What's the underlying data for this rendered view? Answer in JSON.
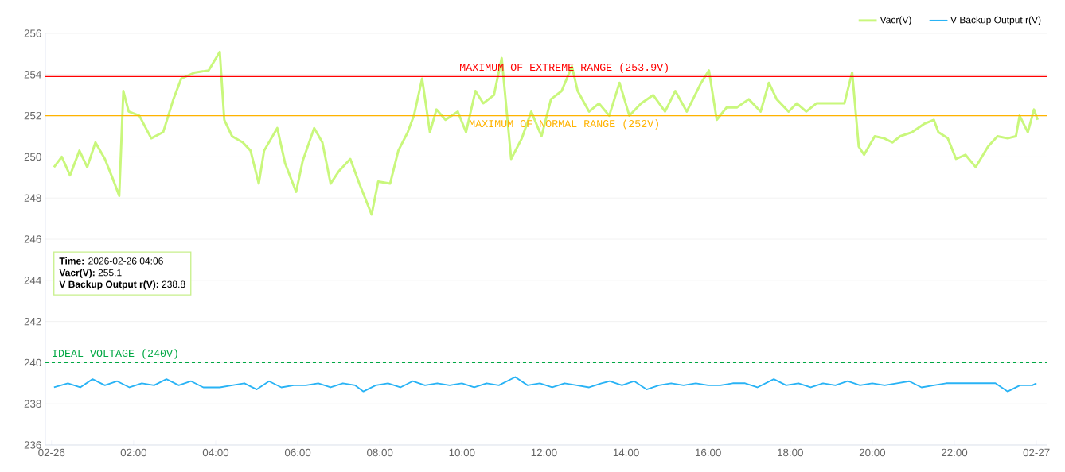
{
  "chart_data": {
    "type": "line",
    "xlim": [
      -0.15,
      24.25
    ],
    "ylim": [
      236,
      256
    ],
    "xticks": [
      {
        "value": 0,
        "label": "02-26"
      },
      {
        "value": 2,
        "label": "02:00"
      },
      {
        "value": 4,
        "label": "04:00"
      },
      {
        "value": 6,
        "label": "06:00"
      },
      {
        "value": 8,
        "label": "08:00"
      },
      {
        "value": 10,
        "label": "10:00"
      },
      {
        "value": 12,
        "label": "12:00"
      },
      {
        "value": 14,
        "label": "14:00"
      },
      {
        "value": 16,
        "label": "16:00"
      },
      {
        "value": 18,
        "label": "18:00"
      },
      {
        "value": 20,
        "label": "20:00"
      },
      {
        "value": 22,
        "label": "22:00"
      },
      {
        "value": 24,
        "label": "02-27"
      }
    ],
    "yticks": [
      236,
      238,
      240,
      242,
      244,
      246,
      248,
      250,
      252,
      254,
      256
    ],
    "grid": "y",
    "legend": "top right",
    "marker": "none",
    "line_style": "solid",
    "series": [
      {
        "name": "Vacr(V)",
        "color": "#c9f77c",
        "x": [
          0.06,
          0.25,
          0.45,
          0.68,
          0.87,
          1.07,
          1.3,
          1.5,
          1.65,
          1.75,
          1.88,
          2.14,
          2.43,
          2.72,
          2.97,
          3.16,
          3.5,
          3.83,
          4.1,
          4.21,
          4.4,
          4.66,
          4.85,
          5.05,
          5.18,
          5.5,
          5.69,
          5.96,
          6.12,
          6.4,
          6.6,
          6.8,
          7.0,
          7.28,
          7.5,
          7.8,
          7.96,
          8.25,
          8.45,
          8.68,
          8.83,
          9.03,
          9.22,
          9.38,
          9.6,
          9.9,
          10.1,
          10.33,
          10.52,
          10.78,
          10.97,
          11.2,
          11.46,
          11.69,
          11.94,
          12.17,
          12.43,
          12.68,
          12.82,
          13.1,
          13.34,
          13.59,
          13.84,
          14.08,
          14.37,
          14.66,
          14.95,
          15.2,
          15.48,
          15.83,
          16.02,
          16.21,
          16.45,
          16.7,
          16.99,
          17.28,
          17.48,
          17.67,
          17.96,
          18.16,
          18.39,
          18.64,
          18.93,
          19.32,
          19.51,
          19.67,
          19.8,
          20.06,
          20.29,
          20.49,
          20.68,
          20.97,
          21.26,
          21.5,
          21.61,
          21.84,
          22.04,
          22.27,
          22.52,
          22.82,
          23.05,
          23.3,
          23.5,
          23.59,
          23.79,
          23.94,
          24.03
        ],
        "values": [
          249.5,
          250.0,
          249.1,
          250.3,
          249.5,
          250.7,
          249.9,
          248.9,
          248.1,
          253.2,
          252.2,
          252.0,
          250.9,
          251.2,
          252.8,
          253.8,
          254.1,
          254.2,
          255.1,
          251.8,
          251.0,
          250.7,
          250.3,
          248.7,
          250.3,
          251.4,
          249.7,
          248.3,
          249.8,
          251.4,
          250.7,
          248.7,
          249.3,
          249.9,
          248.7,
          247.2,
          248.8,
          248.7,
          250.3,
          251.2,
          252.0,
          253.8,
          251.2,
          252.3,
          251.8,
          252.2,
          251.2,
          253.2,
          252.6,
          253.0,
          254.8,
          249.9,
          250.9,
          252.2,
          251.0,
          252.8,
          253.2,
          254.4,
          253.2,
          252.2,
          252.6,
          252.0,
          253.6,
          252.0,
          252.6,
          253.0,
          252.2,
          253.2,
          252.2,
          253.6,
          254.2,
          251.8,
          252.4,
          252.4,
          252.8,
          252.2,
          253.6,
          252.8,
          252.2,
          252.6,
          252.2,
          252.6,
          252.6,
          252.6,
          254.1,
          250.5,
          250.1,
          251.0,
          250.9,
          250.7,
          251.0,
          251.2,
          251.6,
          251.8,
          251.2,
          250.9,
          249.9,
          250.1,
          249.5,
          250.5,
          251.0,
          250.9,
          251.0,
          252.0,
          251.2,
          252.3,
          251.8
        ]
      },
      {
        "name": "V Backup Output r(V)",
        "color": "#29b3f5",
        "x": [
          0.06,
          0.4,
          0.7,
          1.0,
          1.3,
          1.6,
          1.9,
          2.2,
          2.5,
          2.8,
          3.1,
          3.4,
          3.7,
          4.1,
          4.4,
          4.7,
          5.0,
          5.3,
          5.6,
          5.9,
          6.2,
          6.5,
          6.8,
          7.1,
          7.4,
          7.6,
          7.9,
          8.2,
          8.5,
          8.8,
          9.1,
          9.4,
          9.7,
          10.0,
          10.3,
          10.6,
          10.9,
          11.3,
          11.6,
          11.9,
          12.2,
          12.5,
          12.8,
          13.1,
          13.4,
          13.6,
          13.9,
          14.2,
          14.5,
          14.8,
          15.1,
          15.4,
          15.7,
          16.0,
          16.3,
          16.6,
          16.9,
          17.2,
          17.6,
          17.9,
          18.2,
          18.5,
          18.8,
          19.1,
          19.4,
          19.7,
          20.0,
          20.3,
          20.6,
          20.9,
          21.2,
          21.5,
          21.8,
          22.1,
          22.4,
          22.7,
          23.0,
          23.3,
          23.6,
          23.9,
          24.0
        ],
        "values": [
          238.8,
          239.0,
          238.8,
          239.2,
          238.9,
          239.1,
          238.8,
          239.0,
          238.9,
          239.2,
          238.9,
          239.1,
          238.8,
          238.8,
          238.9,
          239.0,
          238.7,
          239.1,
          238.8,
          238.9,
          238.9,
          239.0,
          238.8,
          239.0,
          238.9,
          238.6,
          238.9,
          239.0,
          238.8,
          239.1,
          238.9,
          239.0,
          238.9,
          239.0,
          238.8,
          239.0,
          238.9,
          239.3,
          238.9,
          239.0,
          238.8,
          239.0,
          238.9,
          238.8,
          239.0,
          239.1,
          238.9,
          239.1,
          238.7,
          238.9,
          239.0,
          238.9,
          239.0,
          238.9,
          238.9,
          239.0,
          239.0,
          238.8,
          239.2,
          238.9,
          239.0,
          238.8,
          239.0,
          238.9,
          239.1,
          238.9,
          239.0,
          238.9,
          239.0,
          239.1,
          238.8,
          238.9,
          239.0,
          239.0,
          239.0,
          239.0,
          239.0,
          238.6,
          238.9,
          238.9,
          239.0
        ]
      }
    ],
    "ref_lines": [
      {
        "axis": "y",
        "value": 253.9,
        "label": "MAXIMUM OF EXTREME RANGE (253.9V)",
        "color": "#ff0000",
        "line_style": "solid"
      },
      {
        "axis": "y",
        "value": 252,
        "label": "MAXIMUM OF NORMAL RANGE (252V)",
        "color": "#ffb300",
        "line_style": "solid"
      },
      {
        "axis": "y",
        "value": 240,
        "label": "IDEAL VOLTAGE (240V)",
        "color": "#00a844",
        "line_style": "dashed"
      }
    ],
    "annotations": [
      "**Time:** 2026-02-26 04:06",
      "**Vacr(V):** 255.1",
      "**V Backup Output r(V):** 238.8"
    ]
  }
}
